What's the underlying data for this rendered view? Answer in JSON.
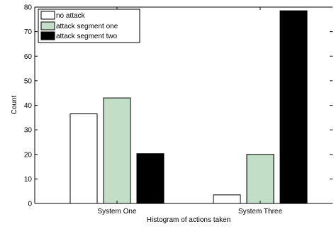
{
  "chart_data": {
    "type": "bar",
    "title": "",
    "xlabel": "Histogram of actions taken",
    "ylabel": "Count",
    "categories": [
      "System One",
      "System Three"
    ],
    "series": [
      {
        "name": "no attack",
        "values": [
          36.5,
          3.5
        ],
        "color": "#ffffff"
      },
      {
        "name": "attack segment one",
        "values": [
          43,
          20
        ],
        "color": "#c2dec6"
      },
      {
        "name": "attack segment two",
        "values": [
          20.3,
          78.5
        ],
        "color": "#000000"
      }
    ],
    "ylim": [
      0,
      80
    ],
    "yticks": [
      0,
      10,
      20,
      30,
      40,
      50,
      60,
      70,
      80
    ],
    "ytick_labels": [
      "0",
      "10",
      "20",
      "30",
      "40",
      "50",
      "60",
      "70",
      "80"
    ],
    "grid": false,
    "legend_position": "top-left"
  }
}
